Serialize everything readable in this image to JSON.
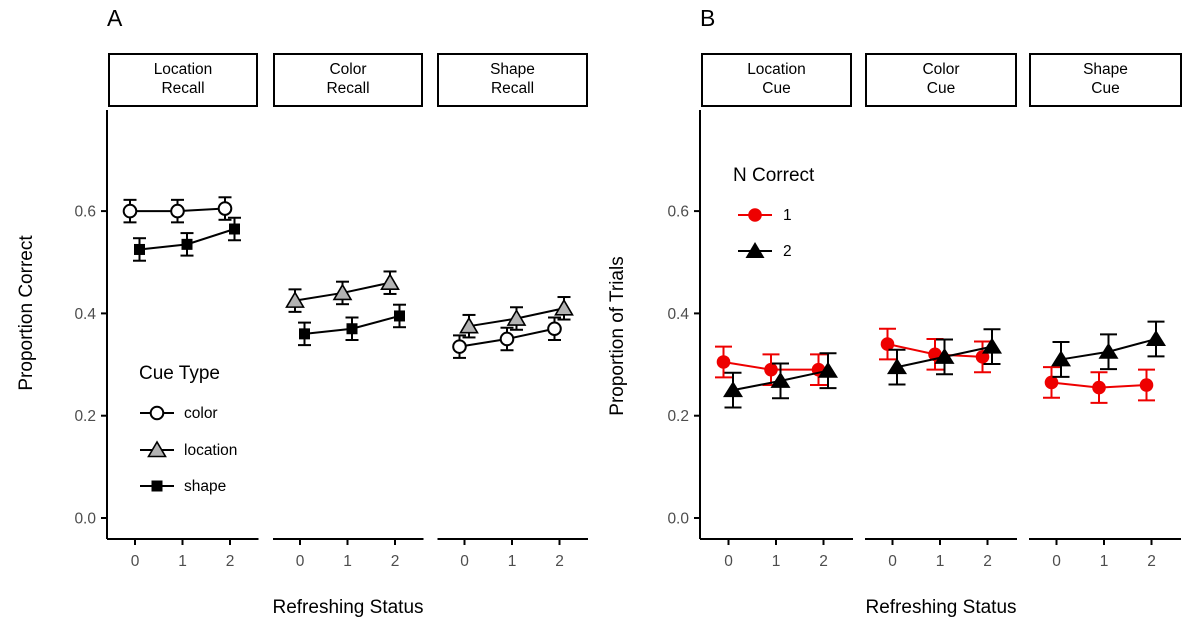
{
  "colors": {
    "red": "#ee0000",
    "gray_fill": "#b3b3b3",
    "black": "#000000",
    "white": "#ffffff",
    "axis_tick_label": "#4d4d4d"
  },
  "panels": {
    "a": {
      "letter": "A",
      "ylabel": "Proportion Correct",
      "xlabel": "Refreshing Status",
      "legend": {
        "title": "Cue Type",
        "items": [
          {
            "label": "color"
          },
          {
            "label": "location"
          },
          {
            "label": "shape"
          }
        ]
      }
    },
    "b": {
      "letter": "B",
      "ylabel": "Proportion of Trials",
      "xlabel": "Refreshing Status",
      "legend": {
        "title": "N Correct",
        "items": [
          {
            "label": "1"
          },
          {
            "label": "2"
          }
        ]
      }
    }
  },
  "chart_data": [
    {
      "panel": "A",
      "type": "line",
      "title": "",
      "xlabel": "Refreshing Status",
      "ylabel": "Proportion Correct",
      "x": [
        0,
        1,
        2
      ],
      "x_tick_labels": [
        "0",
        "1",
        "2"
      ],
      "ylim": [
        -0.04,
        0.8
      ],
      "yticks": [
        0,
        0.2,
        0.4,
        0.6
      ],
      "ytick_labels": [
        "0.0",
        "0.2",
        "0.4",
        "0.6"
      ],
      "grid": false,
      "legend_title": "Cue Type",
      "legend_position": "inside-first-facet",
      "facets": [
        {
          "label": "Location\nRecall",
          "series": [
            {
              "name": "color",
              "marker": "open-circle",
              "color": "#000000",
              "fill": "#ffffff",
              "values": [
                0.6,
                0.6,
                0.605
              ],
              "errors": [
                0.022,
                0.022,
                0.022
              ]
            },
            {
              "name": "shape",
              "marker": "black-square",
              "color": "#000000",
              "fill": "#000000",
              "values": [
                0.525,
                0.535,
                0.565
              ],
              "errors": [
                0.022,
                0.022,
                0.022
              ]
            }
          ]
        },
        {
          "label": "Color\nRecall",
          "series": [
            {
              "name": "location",
              "marker": "gray-triangle",
              "color": "#000000",
              "fill": "#b3b3b3",
              "values": [
                0.425,
                0.44,
                0.46
              ],
              "errors": [
                0.022,
                0.022,
                0.022
              ]
            },
            {
              "name": "shape",
              "marker": "black-square",
              "color": "#000000",
              "fill": "#000000",
              "values": [
                0.36,
                0.37,
                0.395
              ],
              "errors": [
                0.022,
                0.022,
                0.022
              ]
            }
          ]
        },
        {
          "label": "Shape\nRecall",
          "series": [
            {
              "name": "color",
              "marker": "open-circle",
              "color": "#000000",
              "fill": "#ffffff",
              "values": [
                0.335,
                0.35,
                0.37
              ],
              "errors": [
                0.022,
                0.022,
                0.022
              ]
            },
            {
              "name": "location",
              "marker": "gray-triangle",
              "color": "#000000",
              "fill": "#b3b3b3",
              "values": [
                0.375,
                0.39,
                0.41
              ],
              "errors": [
                0.022,
                0.022,
                0.022
              ]
            }
          ]
        }
      ]
    },
    {
      "panel": "B",
      "type": "line",
      "title": "",
      "xlabel": "Refreshing Status",
      "ylabel": "Proportion of Trials",
      "x": [
        0,
        1,
        2
      ],
      "x_tick_labels": [
        "0",
        "1",
        "2"
      ],
      "ylim": [
        -0.04,
        0.8
      ],
      "yticks": [
        0,
        0.2,
        0.4,
        0.6
      ],
      "ytick_labels": [
        "0.0",
        "0.2",
        "0.4",
        "0.6"
      ],
      "grid": false,
      "legend_title": "N Correct",
      "legend_position": "inside-first-facet",
      "facets": [
        {
          "label": "Location\nCue",
          "series": [
            {
              "name": "1",
              "marker": "red-circle",
              "color": "#ee0000",
              "fill": "#ee0000",
              "values": [
                0.305,
                0.29,
                0.29
              ],
              "errors": [
                0.03,
                0.03,
                0.03
              ]
            },
            {
              "name": "2",
              "marker": "black-triangle",
              "color": "#000000",
              "fill": "#000000",
              "values": [
                0.25,
                0.268,
                0.288
              ],
              "errors": [
                0.034,
                0.034,
                0.034
              ]
            }
          ]
        },
        {
          "label": "Color\nCue",
          "series": [
            {
              "name": "1",
              "marker": "red-circle",
              "color": "#ee0000",
              "fill": "#ee0000",
              "values": [
                0.34,
                0.32,
                0.315
              ],
              "errors": [
                0.03,
                0.03,
                0.03
              ]
            },
            {
              "name": "2",
              "marker": "black-triangle",
              "color": "#000000",
              "fill": "#000000",
              "values": [
                0.295,
                0.315,
                0.335
              ],
              "errors": [
                0.034,
                0.034,
                0.034
              ]
            }
          ]
        },
        {
          "label": "Shape\nCue",
          "series": [
            {
              "name": "1",
              "marker": "red-circle",
              "color": "#ee0000",
              "fill": "#ee0000",
              "values": [
                0.265,
                0.255,
                0.26
              ],
              "errors": [
                0.03,
                0.03,
                0.03
              ]
            },
            {
              "name": "2",
              "marker": "black-triangle",
              "color": "#000000",
              "fill": "#000000",
              "values": [
                0.31,
                0.325,
                0.35
              ],
              "errors": [
                0.034,
                0.034,
                0.034
              ]
            }
          ]
        }
      ]
    }
  ]
}
